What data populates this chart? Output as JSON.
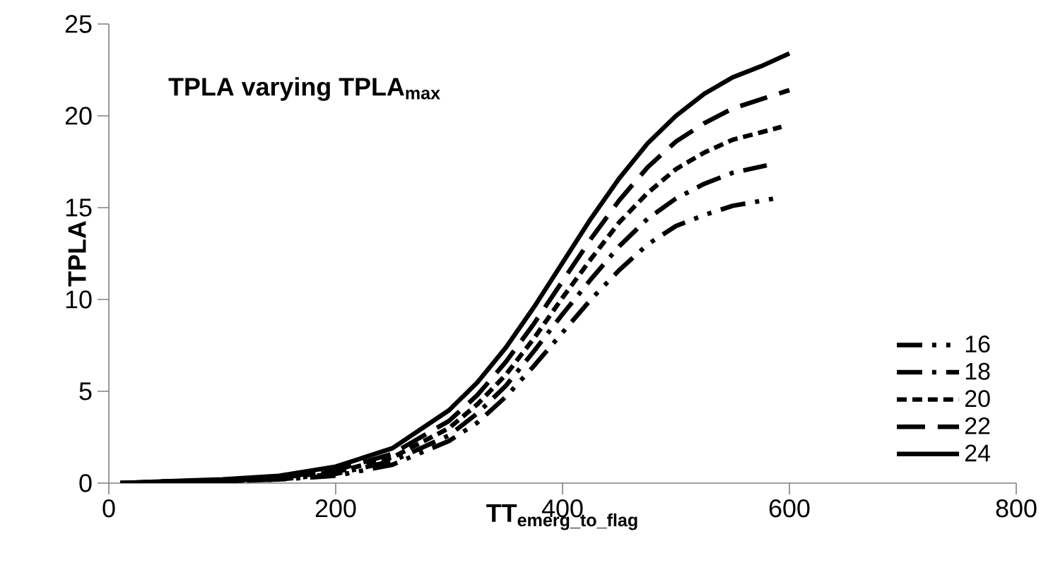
{
  "chart_data": {
    "type": "line",
    "title": "TPLA varying TPLA$_{max}$",
    "xlabel": "TT$_{emerg_to_flag}$",
    "ylabel": "TPLA",
    "xlim": [
      0,
      800
    ],
    "xticks": [
      0,
      200,
      400,
      600,
      800
    ],
    "ylim": [
      0,
      25
    ],
    "yticks": [
      0,
      5,
      10,
      15,
      20,
      25
    ],
    "grid": false,
    "legend": "bottom right",
    "marker": "none",
    "series": [
      {
        "name": "16",
        "color": "#000000",
        "line_style": "dashdotdot",
        "x": [
          10,
          50,
          100,
          150,
          200,
          250,
          300,
          325,
          350,
          375,
          400,
          425,
          450,
          475,
          500,
          525,
          550,
          587
        ],
        "values": [
          0.0,
          0.0,
          0.1,
          0.2,
          0.4,
          1.0,
          2.3,
          3.3,
          4.7,
          6.4,
          8.2,
          10.0,
          11.6,
          13.0,
          14.0,
          14.6,
          15.1,
          15.5
        ]
      },
      {
        "name": "18",
        "color": "#000000",
        "line_style": "dashdot",
        "x": [
          10,
          50,
          100,
          150,
          200,
          250,
          300,
          325,
          350,
          375,
          400,
          425,
          450,
          475,
          500,
          525,
          550,
          580
        ],
        "values": [
          0.0,
          0.0,
          0.1,
          0.2,
          0.5,
          1.2,
          2.6,
          3.8,
          5.3,
          7.2,
          9.2,
          11.1,
          12.9,
          14.4,
          15.5,
          16.3,
          16.9,
          17.3
        ]
      },
      {
        "name": "20",
        "color": "#000000",
        "line_style": "dashed",
        "x": [
          10,
          50,
          100,
          150,
          200,
          250,
          300,
          325,
          350,
          375,
          400,
          425,
          450,
          475,
          500,
          525,
          550,
          575,
          593
        ],
        "values": [
          0.0,
          0.0,
          0.1,
          0.3,
          0.6,
          1.4,
          3.0,
          4.3,
          5.9,
          7.9,
          10.1,
          12.2,
          14.2,
          15.8,
          17.1,
          18.0,
          18.7,
          19.1,
          19.4
        ]
      },
      {
        "name": "22",
        "color": "#000000",
        "line_style": "longdash",
        "x": [
          10,
          50,
          100,
          150,
          200,
          250,
          300,
          325,
          350,
          375,
          400,
          425,
          450,
          475,
          500,
          525,
          550,
          575,
          600
        ],
        "values": [
          0.0,
          0.1,
          0.1,
          0.3,
          0.7,
          1.6,
          3.39,
          4.8,
          6.6,
          8.7,
          11.0,
          13.3,
          15.4,
          17.2,
          18.6,
          19.6,
          20.4,
          20.9,
          21.4
        ]
      },
      {
        "name": "24",
        "color": "#000000",
        "line_style": "solid",
        "x": [
          10,
          50,
          100,
          150,
          200,
          250,
          300,
          325,
          350,
          375,
          400,
          425,
          450,
          475,
          500,
          525,
          550,
          575,
          600
        ],
        "values": [
          0.0,
          0.1,
          0.2,
          0.4,
          0.9,
          1.9,
          3.97,
          5.49,
          7.38,
          9.6,
          12.0,
          14.4,
          16.6,
          18.5,
          20.0,
          21.2,
          22.1,
          22.7,
          23.4
        ]
      }
    ]
  }
}
